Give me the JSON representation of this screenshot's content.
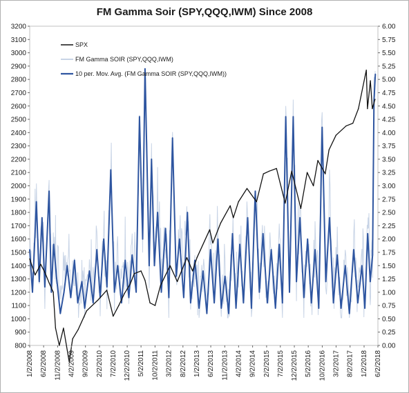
{
  "chart_data": {
    "type": "line",
    "title": "FM Gamma Soir (SPY,QQQ,IWM)   Since 2008",
    "legend_position": "top-left",
    "grid": false,
    "x_tick_labels": [
      "1/2/2008",
      "6/2/2008",
      "11/2/2008",
      "4/2/2009",
      "9/2/2009",
      "2/2/2010",
      "7/2/2010",
      "12/2/2010",
      "5/2/2011",
      "10/2/2011",
      "3/2/2012",
      "8/2/2012",
      "1/2/2013",
      "6/2/2013",
      "11/2/2013",
      "4/2/2014",
      "9/2/2014",
      "2/2/2015",
      "7/2/2015",
      "12/2/2015",
      "5/2/2016",
      "10/2/2016",
      "3/2/2017",
      "8/2/2017",
      "1/2/2018",
      "6/2/2018"
    ],
    "x_range": [
      "2008-01-02",
      "2018-06-02"
    ],
    "y_left": {
      "ylim": [
        800,
        3200
      ],
      "ticks": [
        "800",
        "900",
        "1000",
        "1100",
        "1200",
        "1300",
        "1400",
        "1500",
        "1600",
        "1700",
        "1800",
        "1900",
        "2000",
        "2100",
        "2200",
        "2300",
        "2400",
        "2500",
        "2600",
        "2700",
        "2800",
        "2900",
        "3000",
        "3100",
        "3200"
      ]
    },
    "y_right": {
      "ylim": [
        0,
        6
      ],
      "ticks": [
        "0.00",
        "0.25",
        "0.50",
        "0.75",
        "1.00",
        "1.25",
        "1.50",
        "1.75",
        "2.00",
        "2.25",
        "2.50",
        "2.75",
        "3.00",
        "3.25",
        "3.50",
        "3.75",
        "4.00",
        "4.25",
        "4.50",
        "4.75",
        "5.00",
        "5.25",
        "5.50",
        "5.75",
        "6.00"
      ]
    },
    "series": [
      {
        "name": "SPX",
        "axis": "left",
        "color": "#111111",
        "x": [
          "2008-01-02",
          "2008-03-01",
          "2008-05-01",
          "2008-06-15",
          "2008-08-01",
          "2008-09-15",
          "2008-10-10",
          "2008-11-20",
          "2009-01-05",
          "2009-03-09",
          "2009-04-15",
          "2009-06-15",
          "2009-09-15",
          "2010-01-15",
          "2010-04-23",
          "2010-07-02",
          "2010-09-01",
          "2010-11-01",
          "2011-01-03",
          "2011-02-18",
          "2011-05-02",
          "2011-06-15",
          "2011-08-08",
          "2011-10-03",
          "2011-12-01",
          "2012-03-15",
          "2012-06-01",
          "2012-09-14",
          "2012-11-15",
          "2013-01-02",
          "2013-05-21",
          "2013-06-24",
          "2013-09-18",
          "2013-12-31",
          "2014-02-03",
          "2014-04-01",
          "2014-07-03",
          "2014-10-15",
          "2014-12-29",
          "2015-03-01",
          "2015-05-21",
          "2015-08-24",
          "2015-11-03",
          "2016-02-11",
          "2016-04-20",
          "2016-06-27",
          "2016-08-15",
          "2016-11-03",
          "2016-12-15",
          "2017-03-01",
          "2017-06-19",
          "2017-09-01",
          "2017-11-01",
          "2018-01-26",
          "2018-02-08",
          "2018-03-12",
          "2018-04-02",
          "2018-05-01"
        ],
        "values": [
          1450,
          1330,
          1410,
          1350,
          1270,
          1200,
          930,
          800,
          930,
          676,
          850,
          920,
          1060,
          1140,
          1215,
          1020,
          1100,
          1190,
          1260,
          1340,
          1360,
          1290,
          1120,
          1100,
          1250,
          1400,
          1280,
          1460,
          1360,
          1460,
          1670,
          1570,
          1720,
          1850,
          1760,
          1880,
          1980,
          1880,
          2090,
          2110,
          2130,
          1870,
          2110,
          1830,
          2100,
          2000,
          2190,
          2090,
          2270,
          2380,
          2450,
          2470,
          2580,
          2870,
          2580,
          2790,
          2580,
          2650
        ]
      },
      {
        "name": "FM Gamma SOIR (SPY,QQQ,IWM)",
        "axis": "right",
        "color": "#c8d4e6"
      },
      {
        "name": "10 per. Mov. Avg. (FM Gamma SOIR (SPY,QQQ,IWM))",
        "axis": "right",
        "color": "#2e55a0",
        "x": [
          "2008-01-02",
          "2008-02-01",
          "2008-03-15",
          "2008-04-15",
          "2008-05-15",
          "2008-06-15",
          "2008-08-01",
          "2008-08-25",
          "2008-09-20",
          "2008-10-20",
          "2008-12-01",
          "2009-01-10",
          "2009-02-15",
          "2009-03-25",
          "2009-05-05",
          "2009-06-10",
          "2009-07-25",
          "2009-08-25",
          "2009-10-15",
          "2009-11-25",
          "2010-01-05",
          "2010-02-10",
          "2010-03-20",
          "2010-04-25",
          "2010-06-05",
          "2010-07-15",
          "2010-08-20",
          "2010-10-01",
          "2010-11-10",
          "2010-12-20",
          "2011-01-25",
          "2011-03-10",
          "2011-04-15",
          "2011-05-20",
          "2011-06-15",
          "2011-07-30",
          "2011-08-25",
          "2011-09-25",
          "2011-10-30",
          "2011-12-10",
          "2012-01-25",
          "2012-03-01",
          "2012-04-10",
          "2012-05-20",
          "2012-06-25",
          "2012-08-10",
          "2012-09-20",
          "2012-10-25",
          "2012-12-10",
          "2013-01-25",
          "2013-03-10",
          "2013-04-20",
          "2013-05-30",
          "2013-07-10",
          "2013-08-20",
          "2013-09-25",
          "2013-11-05",
          "2013-12-15",
          "2014-01-25",
          "2014-03-05",
          "2014-04-15",
          "2014-05-25",
          "2014-07-10",
          "2014-08-20",
          "2014-10-01",
          "2014-11-15",
          "2014-12-25",
          "2015-02-10",
          "2015-03-25",
          "2015-05-10",
          "2015-06-20",
          "2015-07-25",
          "2015-08-30",
          "2015-10-10",
          "2015-11-20",
          "2015-12-25",
          "2016-02-01",
          "2016-03-15",
          "2016-04-25",
          "2016-06-05",
          "2016-07-15",
          "2016-08-25",
          "2016-10-01",
          "2016-11-10",
          "2016-12-20",
          "2017-02-01",
          "2017-03-15",
          "2017-04-25",
          "2017-06-10",
          "2017-07-25",
          "2017-09-10",
          "2017-10-25",
          "2017-12-10",
          "2018-01-10",
          "2018-02-10",
          "2018-03-10",
          "2018-04-05",
          "2018-04-20",
          "2018-05-05"
        ],
        "values": [
          1.8,
          1.0,
          2.7,
          1.2,
          2.4,
          1.1,
          2.9,
          1.0,
          1.9,
          1.3,
          0.6,
          1.0,
          1.5,
          0.9,
          1.6,
          0.8,
          1.2,
          0.7,
          1.4,
          0.8,
          1.8,
          0.9,
          2.0,
          1.1,
          3.3,
          1.0,
          1.5,
          0.8,
          1.6,
          0.9,
          1.7,
          1.0,
          4.3,
          2.0,
          5.2,
          1.5,
          3.5,
          1.5,
          2.5,
          1.0,
          2.2,
          0.9,
          3.9,
          1.3,
          2.0,
          0.9,
          2.5,
          0.8,
          1.6,
          0.7,
          1.4,
          0.6,
          1.8,
          0.8,
          2.0,
          0.7,
          1.3,
          0.6,
          2.1,
          0.7,
          1.9,
          0.8,
          2.4,
          0.7,
          2.9,
          1.0,
          2.1,
          0.8,
          1.8,
          0.7,
          1.9,
          0.8,
          4.3,
          1.0,
          4.3,
          1.2,
          2.4,
          0.9,
          2.0,
          0.8,
          1.8,
          0.7,
          4.1,
          1.2,
          2.4,
          0.8,
          1.7,
          0.7,
          1.5,
          0.6,
          1.8,
          0.8,
          1.5,
          0.7,
          2.1,
          1.2,
          1.7,
          4.6,
          5.1
        ]
      }
    ]
  }
}
